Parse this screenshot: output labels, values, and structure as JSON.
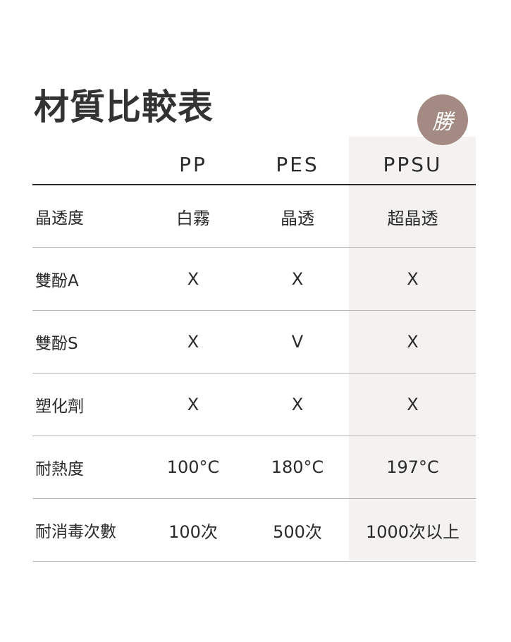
{
  "title": "材質比較表",
  "badge": "勝",
  "colors": {
    "badge": "#a38a82",
    "highlight": "#f3f2f0"
  },
  "headers": [
    "",
    "PP",
    "PES",
    "PPSU"
  ],
  "rows": [
    [
      "晶透度",
      "白霧",
      "晶透",
      "超晶透"
    ],
    [
      "雙酚A",
      "X",
      "X",
      "X"
    ],
    [
      "雙酚S",
      "X",
      "V",
      "X"
    ],
    [
      "塑化劑",
      "X",
      "X",
      "X"
    ],
    [
      "耐熱度",
      "100°C",
      "180°C",
      "197°C"
    ],
    [
      "耐消毒次數",
      "100次",
      "500次",
      "1000次以上"
    ]
  ]
}
